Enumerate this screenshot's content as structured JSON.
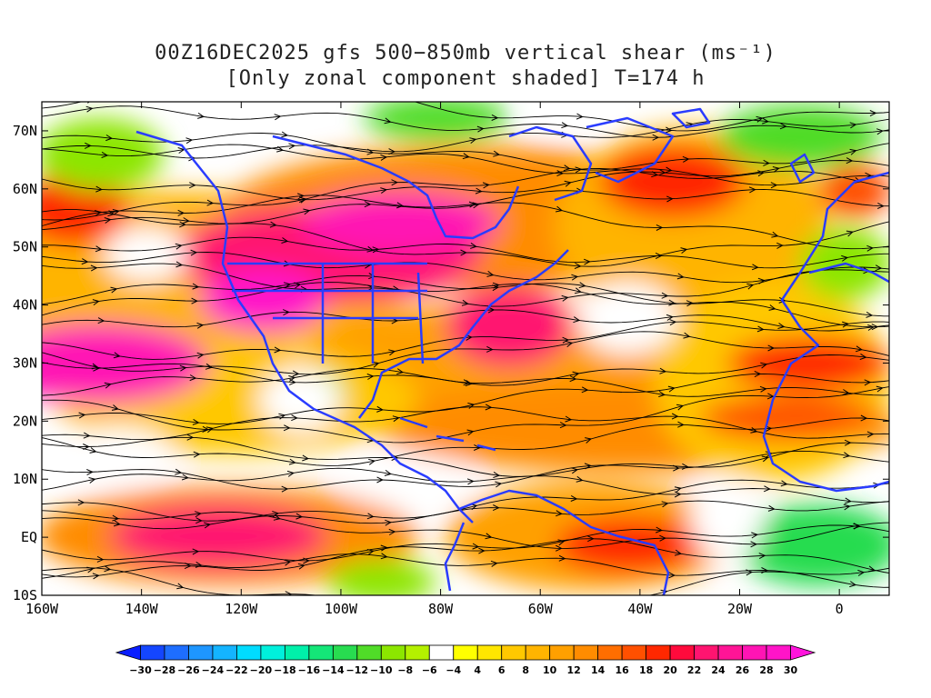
{
  "title": {
    "line1": "00Z16DEC2025 gfs 500−850mb vertical shear (ms⁻¹)",
    "line2": "[Only zonal component shaded] T=174 h"
  },
  "axes": {
    "lat_labels": [
      "70N",
      "60N",
      "50N",
      "40N",
      "30N",
      "20N",
      "10N",
      "EQ",
      "10S"
    ],
    "lon_labels": [
      "160W",
      "140W",
      "120W",
      "100W",
      "80W",
      "60W",
      "40W",
      "20W",
      "0"
    ]
  },
  "colorbar": {
    "labels": [
      "−30",
      "−28",
      "−26",
      "−24",
      "−22",
      "−20",
      "−18",
      "−16",
      "−14",
      "−12",
      "−10",
      "−8",
      "−6",
      "−4",
      "4",
      "6",
      "8",
      "10",
      "12",
      "14",
      "16",
      "18",
      "20",
      "22",
      "24",
      "26",
      "28",
      "30"
    ],
    "colors": [
      "#0a1eff",
      "#1446ff",
      "#1e6eff",
      "#1e96ff",
      "#14b4ff",
      "#00dcff",
      "#00f0dc",
      "#00f0aa",
      "#14e678",
      "#28dc50",
      "#50dc28",
      "#8ce600",
      "#b4f000",
      "#ffffff",
      "#ffff00",
      "#ffe600",
      "#ffc800",
      "#ffb400",
      "#ffa000",
      "#ff8c00",
      "#ff6e00",
      "#ff5000",
      "#ff2800",
      "#ff0a3c",
      "#ff1470",
      "#ff1496",
      "#ff14b4",
      "#ff14c8",
      "#ff14dc"
    ]
  },
  "map": {
    "lon_range": [
      -160,
      10
    ],
    "lat_range": [
      -10,
      75
    ]
  },
  "colors": {
    "coastline": "#2a3cff",
    "streamline": "#000000"
  }
}
